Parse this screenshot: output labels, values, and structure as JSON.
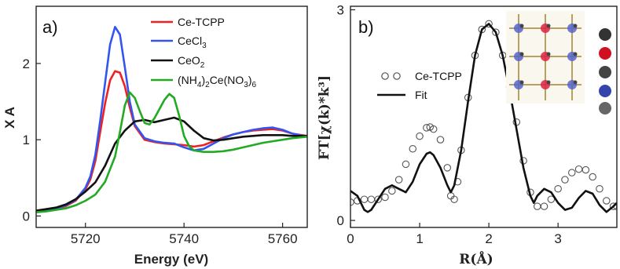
{
  "chart_data": [
    {
      "type": "line",
      "panel_label": "a)",
      "xlabel": "Energy (eV)",
      "ylabel": "X A",
      "xlim": [
        5710,
        5765
      ],
      "ylim": [
        -0.15,
        2.75
      ],
      "xticks": [
        5720,
        5740,
        5760
      ],
      "yticks": [
        0,
        1,
        2
      ],
      "legend_position": "top-right",
      "series": [
        {
          "name": "Ce-TCPP",
          "color": "#ee2222",
          "points": [
            [
              5710,
              0.07
            ],
            [
              5712,
              0.08
            ],
            [
              5714,
              0.1
            ],
            [
              5716,
              0.13
            ],
            [
              5718,
              0.2
            ],
            [
              5720,
              0.35
            ],
            [
              5721,
              0.48
            ],
            [
              5722,
              0.72
            ],
            [
              5723,
              1.1
            ],
            [
              5724,
              1.48
            ],
            [
              5725,
              1.78
            ],
            [
              5726,
              1.9
            ],
            [
              5727,
              1.88
            ],
            [
              5728,
              1.7
            ],
            [
              5729,
              1.42
            ],
            [
              5730,
              1.18
            ],
            [
              5732,
              1.0
            ],
            [
              5734,
              0.97
            ],
            [
              5736,
              0.95
            ],
            [
              5738,
              0.94
            ],
            [
              5740,
              0.93
            ],
            [
              5742,
              0.91
            ],
            [
              5744,
              0.93
            ],
            [
              5746,
              0.98
            ],
            [
              5748,
              1.03
            ],
            [
              5750,
              1.07
            ],
            [
              5752,
              1.1
            ],
            [
              5754,
              1.12
            ],
            [
              5756,
              1.13
            ],
            [
              5758,
              1.14
            ],
            [
              5760,
              1.12
            ],
            [
              5762,
              1.08
            ],
            [
              5765,
              1.05
            ]
          ]
        },
        {
          "name": "CeCl3",
          "color": "#3355ee",
          "points": [
            [
              5710,
              0.07
            ],
            [
              5712,
              0.08
            ],
            [
              5714,
              0.1
            ],
            [
              5716,
              0.14
            ],
            [
              5718,
              0.21
            ],
            [
              5720,
              0.37
            ],
            [
              5721,
              0.52
            ],
            [
              5722,
              0.8
            ],
            [
              5723,
              1.25
            ],
            [
              5724,
              1.75
            ],
            [
              5725,
              2.25
            ],
            [
              5726,
              2.48
            ],
            [
              5727,
              2.38
            ],
            [
              5728,
              1.95
            ],
            [
              5729,
              1.5
            ],
            [
              5730,
              1.2
            ],
            [
              5732,
              1.02
            ],
            [
              5734,
              0.98
            ],
            [
              5736,
              0.96
            ],
            [
              5738,
              0.95
            ],
            [
              5740,
              0.9
            ],
            [
              5742,
              0.86
            ],
            [
              5744,
              0.88
            ],
            [
              5746,
              0.95
            ],
            [
              5748,
              1.02
            ],
            [
              5750,
              1.07
            ],
            [
              5752,
              1.1
            ],
            [
              5754,
              1.13
            ],
            [
              5756,
              1.15
            ],
            [
              5758,
              1.16
            ],
            [
              5760,
              1.13
            ],
            [
              5762,
              1.08
            ],
            [
              5765,
              1.04
            ]
          ]
        },
        {
          "name": "CeO2",
          "color": "#111111",
          "points": [
            [
              5710,
              0.07
            ],
            [
              5712,
              0.09
            ],
            [
              5714,
              0.11
            ],
            [
              5716,
              0.15
            ],
            [
              5718,
              0.22
            ],
            [
              5720,
              0.32
            ],
            [
              5722,
              0.44
            ],
            [
              5724,
              0.66
            ],
            [
              5726,
              0.95
            ],
            [
              5728,
              1.12
            ],
            [
              5730,
              1.24
            ],
            [
              5732,
              1.26
            ],
            [
              5734,
              1.23
            ],
            [
              5736,
              1.26
            ],
            [
              5738,
              1.29
            ],
            [
              5740,
              1.24
            ],
            [
              5742,
              1.12
            ],
            [
              5744,
              1.02
            ],
            [
              5746,
              0.99
            ],
            [
              5748,
              1.0
            ],
            [
              5750,
              1.02
            ],
            [
              5752,
              1.04
            ],
            [
              5754,
              1.05
            ],
            [
              5756,
              1.06
            ],
            [
              5758,
              1.06
            ],
            [
              5760,
              1.06
            ],
            [
              5762,
              1.05
            ],
            [
              5765,
              1.05
            ]
          ]
        },
        {
          "name": "(NH4)2Ce(NO3)6",
          "color": "#22aa22",
          "points": [
            [
              5710,
              0.05
            ],
            [
              5712,
              0.06
            ],
            [
              5714,
              0.08
            ],
            [
              5716,
              0.1
            ],
            [
              5718,
              0.14
            ],
            [
              5720,
              0.2
            ],
            [
              5722,
              0.28
            ],
            [
              5724,
              0.45
            ],
            [
              5726,
              0.78
            ],
            [
              5727,
              1.1
            ],
            [
              5728,
              1.45
            ],
            [
              5729,
              1.62
            ],
            [
              5730,
              1.55
            ],
            [
              5731,
              1.38
            ],
            [
              5732,
              1.22
            ],
            [
              5733,
              1.2
            ],
            [
              5734,
              1.28
            ],
            [
              5735,
              1.4
            ],
            [
              5736,
              1.52
            ],
            [
              5737,
              1.6
            ],
            [
              5738,
              1.55
            ],
            [
              5739,
              1.32
            ],
            [
              5740,
              1.05
            ],
            [
              5741,
              0.92
            ],
            [
              5742,
              0.86
            ],
            [
              5744,
              0.84
            ],
            [
              5746,
              0.84
            ],
            [
              5748,
              0.85
            ],
            [
              5750,
              0.87
            ],
            [
              5752,
              0.9
            ],
            [
              5754,
              0.93
            ],
            [
              5756,
              0.96
            ],
            [
              5758,
              0.98
            ],
            [
              5760,
              1.0
            ],
            [
              5762,
              1.02
            ],
            [
              5765,
              1.04
            ]
          ]
        }
      ]
    },
    {
      "type": "line",
      "panel_label": "b)",
      "xlabel": "R(Å)",
      "ylabel": "FT[χ(k)*k³]",
      "xlim": [
        0,
        3.85
      ],
      "ylim": [
        -0.1,
        3.05
      ],
      "xticks": [
        0,
        1,
        2,
        3
      ],
      "yticks": [
        0,
        3
      ],
      "legend_position": "top-left",
      "series": [
        {
          "name": "Ce-TCPP",
          "style": "open-circles",
          "color": "#555555",
          "points": [
            [
              0.0,
              0.26
            ],
            [
              0.1,
              0.28
            ],
            [
              0.2,
              0.3
            ],
            [
              0.3,
              0.3
            ],
            [
              0.4,
              0.3
            ],
            [
              0.5,
              0.33
            ],
            [
              0.6,
              0.42
            ],
            [
              0.7,
              0.58
            ],
            [
              0.8,
              0.8
            ],
            [
              0.9,
              1.02
            ],
            [
              1.0,
              1.2
            ],
            [
              1.1,
              1.32
            ],
            [
              1.15,
              1.33
            ],
            [
              1.2,
              1.3
            ],
            [
              1.3,
              1.15
            ],
            [
              1.4,
              0.75
            ],
            [
              1.45,
              0.35
            ],
            [
              1.5,
              0.3
            ],
            [
              1.55,
              0.55
            ],
            [
              1.6,
              1.0
            ],
            [
              1.7,
              1.75
            ],
            [
              1.8,
              2.35
            ],
            [
              1.9,
              2.72
            ],
            [
              2.0,
              2.8
            ],
            [
              2.1,
              2.68
            ],
            [
              2.2,
              2.35
            ],
            [
              2.3,
              1.9
            ],
            [
              2.4,
              1.4
            ],
            [
              2.5,
              0.85
            ],
            [
              2.6,
              0.4
            ],
            [
              2.7,
              0.2
            ],
            [
              2.8,
              0.2
            ],
            [
              2.9,
              0.3
            ],
            [
              3.0,
              0.45
            ],
            [
              3.1,
              0.58
            ],
            [
              3.2,
              0.68
            ],
            [
              3.3,
              0.73
            ],
            [
              3.4,
              0.72
            ],
            [
              3.5,
              0.62
            ],
            [
              3.6,
              0.45
            ],
            [
              3.7,
              0.28
            ],
            [
              3.8,
              0.2
            ],
            [
              3.85,
              0.2
            ]
          ]
        },
        {
          "name": "Fit",
          "style": "line",
          "color": "#111111",
          "points": [
            [
              0.0,
              0.42
            ],
            [
              0.1,
              0.35
            ],
            [
              0.2,
              0.15
            ],
            [
              0.25,
              0.12
            ],
            [
              0.3,
              0.15
            ],
            [
              0.4,
              0.3
            ],
            [
              0.5,
              0.45
            ],
            [
              0.6,
              0.5
            ],
            [
              0.7,
              0.45
            ],
            [
              0.8,
              0.4
            ],
            [
              0.9,
              0.55
            ],
            [
              1.0,
              0.8
            ],
            [
              1.1,
              0.95
            ],
            [
              1.15,
              0.97
            ],
            [
              1.2,
              0.93
            ],
            [
              1.3,
              0.75
            ],
            [
              1.4,
              0.5
            ],
            [
              1.45,
              0.4
            ],
            [
              1.5,
              0.5
            ],
            [
              1.6,
              1.0
            ],
            [
              1.7,
              1.7
            ],
            [
              1.8,
              2.35
            ],
            [
              1.9,
              2.72
            ],
            [
              2.0,
              2.8
            ],
            [
              2.1,
              2.68
            ],
            [
              2.2,
              2.35
            ],
            [
              2.3,
              1.85
            ],
            [
              2.4,
              1.3
            ],
            [
              2.5,
              0.75
            ],
            [
              2.6,
              0.35
            ],
            [
              2.65,
              0.25
            ],
            [
              2.7,
              0.35
            ],
            [
              2.8,
              0.45
            ],
            [
              2.9,
              0.4
            ],
            [
              3.0,
              0.25
            ],
            [
              3.1,
              0.15
            ],
            [
              3.2,
              0.18
            ],
            [
              3.3,
              0.32
            ],
            [
              3.4,
              0.42
            ],
            [
              3.5,
              0.38
            ],
            [
              3.6,
              0.22
            ],
            [
              3.7,
              0.12
            ],
            [
              3.8,
              0.2
            ],
            [
              3.85,
              0.25
            ]
          ]
        }
      ]
    }
  ]
}
